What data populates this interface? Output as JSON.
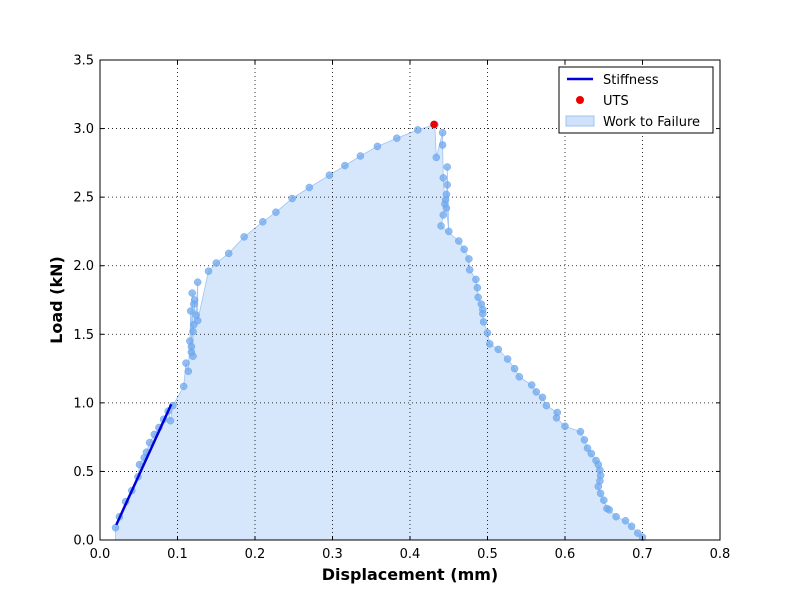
{
  "chart_data": {
    "type": "scatter",
    "title": "",
    "xlabel": "Displacement (mm)",
    "ylabel": "Load (kN)",
    "xlim": [
      0.0,
      0.8
    ],
    "ylim": [
      0.0,
      3.5
    ],
    "xticks": [
      "0.0",
      "0.1",
      "0.2",
      "0.3",
      "0.4",
      "0.5",
      "0.6",
      "0.7",
      "0.8"
    ],
    "yticks": [
      "0.0",
      "0.5",
      "1.0",
      "1.5",
      "2.0",
      "2.5",
      "3.0",
      "3.5"
    ],
    "grid": true,
    "legend_position": "top-right",
    "legend": [
      "Stiffness",
      "UTS",
      "Work to Failure"
    ],
    "colors": {
      "points": "#6fa8ee",
      "fill": "#cfe2fa",
      "fill_edge": "#9fc3f2",
      "stiffness": "#0000dd",
      "uts": "#ee0000"
    },
    "series": [
      {
        "name": "Work to Failure",
        "x": [
          0.02,
          0.025,
          0.033,
          0.041,
          0.049,
          0.051,
          0.057,
          0.06,
          0.064,
          0.07,
          0.076,
          0.082,
          0.088,
          0.091,
          0.094,
          0.108,
          0.111,
          0.114,
          0.116,
          0.117,
          0.118,
          0.118,
          0.119,
          0.12,
          0.12,
          0.121,
          0.122,
          0.121,
          0.124,
          0.126,
          0.126,
          0.14,
          0.15,
          0.166,
          0.186,
          0.21,
          0.227,
          0.248,
          0.27,
          0.296,
          0.316,
          0.336,
          0.358,
          0.383,
          0.41,
          0.432,
          0.434,
          0.442,
          0.442,
          0.443,
          0.445,
          0.446,
          0.447,
          0.448,
          0.448,
          0.45,
          0.447,
          0.443,
          0.44,
          0.463,
          0.47,
          0.476,
          0.477,
          0.485,
          0.487,
          0.488,
          0.492,
          0.494,
          0.494,
          0.495,
          0.5,
          0.503,
          0.514,
          0.526,
          0.535,
          0.541,
          0.557,
          0.563,
          0.571,
          0.576,
          0.59,
          0.589,
          0.6,
          0.62,
          0.625,
          0.629,
          0.634,
          0.64,
          0.643,
          0.645,
          0.646,
          0.645,
          0.643,
          0.646,
          0.65,
          0.654,
          0.657,
          0.666,
          0.678,
          0.686,
          0.694,
          0.7
        ],
        "y": [
          0.09,
          0.17,
          0.28,
          0.36,
          0.46,
          0.55,
          0.6,
          0.64,
          0.71,
          0.77,
          0.82,
          0.88,
          0.94,
          0.87,
          0.98,
          1.12,
          1.29,
          1.23,
          1.45,
          1.67,
          1.37,
          1.41,
          1.8,
          1.34,
          1.52,
          1.57,
          1.75,
          1.72,
          1.64,
          1.88,
          1.6,
          1.96,
          2.02,
          2.09,
          2.21,
          2.32,
          2.39,
          2.49,
          2.57,
          2.66,
          2.73,
          2.8,
          2.87,
          2.93,
          2.99,
          3.03,
          2.79,
          2.97,
          2.88,
          2.64,
          2.45,
          2.48,
          2.52,
          2.59,
          2.72,
          2.25,
          2.42,
          2.37,
          2.29,
          2.18,
          2.12,
          2.05,
          1.97,
          1.9,
          1.84,
          1.77,
          1.72,
          1.65,
          1.68,
          1.59,
          1.51,
          1.43,
          1.39,
          1.32,
          1.25,
          1.19,
          1.13,
          1.08,
          1.04,
          0.98,
          0.93,
          0.89,
          0.83,
          0.79,
          0.73,
          0.67,
          0.63,
          0.58,
          0.55,
          0.51,
          0.47,
          0.43,
          0.39,
          0.34,
          0.29,
          0.23,
          0.22,
          0.17,
          0.14,
          0.1,
          0.05,
          0.02
        ]
      },
      {
        "name": "Stiffness",
        "x": [
          0.021,
          0.092
        ],
        "y": [
          0.11,
          0.99
        ]
      },
      {
        "name": "UTS",
        "x": [
          0.431
        ],
        "y": [
          3.03
        ]
      }
    ]
  }
}
